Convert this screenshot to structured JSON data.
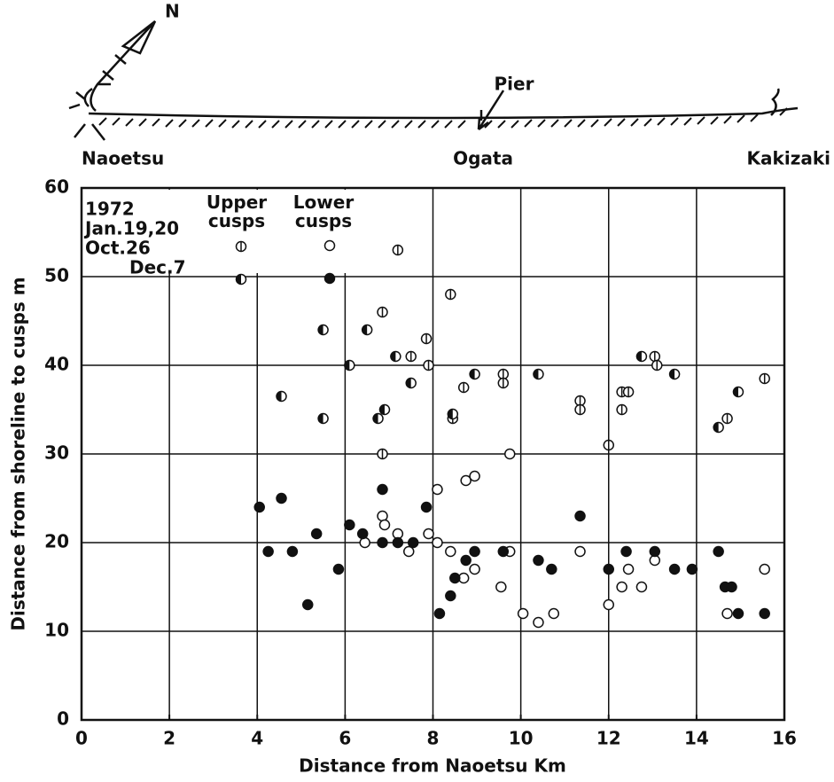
{
  "map": {
    "north": "N",
    "pier": "Pier",
    "places": [
      "Naoetsu",
      "Ogata",
      "Kakizaki"
    ]
  },
  "chart_data": {
    "type": "scatter",
    "xlabel": "Distance from Naoetsu  Km",
    "ylabel": "Distance from shoreline to cusps  m",
    "xlim": [
      0,
      16
    ],
    "ylim": [
      0,
      60
    ],
    "xticks": [
      0,
      2,
      4,
      6,
      8,
      10,
      12,
      14,
      16
    ],
    "yticks": [
      0,
      10,
      20,
      30,
      40,
      50,
      60
    ],
    "grid": true,
    "legend": {
      "title": "1972",
      "dates": [
        "Jan.19,20",
        "Oct.26",
        "Dec.7"
      ],
      "columns": [
        "Upper cusps",
        "Lower cusps"
      ]
    },
    "series": [
      {
        "marker": "barred",
        "color": "#111",
        "x": [
          6.85,
          6.85,
          7.2,
          7.5,
          7.85,
          7.9,
          8.4,
          8.45,
          8.7,
          9.6,
          9.6,
          11.35,
          11.35,
          12,
          12.3,
          12.3,
          12.45,
          13.05,
          13.1,
          14.7,
          15.55
        ],
        "y": [
          46,
          30,
          53,
          41,
          43,
          40,
          48,
          34,
          37.5,
          39,
          38,
          36,
          35,
          31,
          35,
          37,
          37,
          41,
          40,
          34,
          38.5
        ]
      },
      {
        "marker": "half",
        "color": "#111",
        "x": [
          4.55,
          5.5,
          5.5,
          6.1,
          6.5,
          6.75,
          6.9,
          7.15,
          7.5,
          8.45,
          8.95,
          10.4,
          12.75,
          13.5,
          14.5,
          14.95
        ],
        "y": [
          36.5,
          44,
          34,
          40,
          44,
          34,
          35,
          41,
          38,
          34.5,
          39,
          39,
          41,
          39,
          33,
          37
        ]
      },
      {
        "marker": "open",
        "color": "#111",
        "x": [
          6.45,
          6.85,
          6.9,
          7.2,
          7.45,
          7.9,
          8.1,
          8.1,
          8.4,
          8.7,
          8.75,
          8.95,
          8.95,
          9.55,
          9.75,
          9.75,
          10.05,
          10.4,
          10.75,
          11.35,
          12,
          12.3,
          12.45,
          12.75,
          13.05,
          14.7,
          15.55
        ],
        "y": [
          20,
          23,
          22,
          21,
          19,
          21,
          26,
          20,
          19,
          16,
          27,
          17,
          27.5,
          15,
          30,
          19,
          12,
          11,
          12,
          19,
          13,
          15,
          17,
          15,
          18,
          12,
          17
        ]
      },
      {
        "marker": "filled",
        "color": "#111",
        "x": [
          4.05,
          4.25,
          4.55,
          4.8,
          5.15,
          5.35,
          5.85,
          6.1,
          6.4,
          6.85,
          6.85,
          7.2,
          7.55,
          7.85,
          8.15,
          8.4,
          8.5,
          8.75,
          8.95,
          9.6,
          10.4,
          10.7,
          11.35,
          12,
          12.4,
          13.05,
          13.5,
          13.9,
          14.5,
          14.65,
          14.8,
          14.95,
          15.55
        ],
        "y": [
          24,
          19,
          25,
          19,
          13,
          21,
          17,
          22,
          21,
          26,
          20,
          20,
          20,
          24,
          12,
          14,
          16,
          18,
          19,
          19,
          18,
          17,
          23,
          17,
          19,
          19,
          17,
          17,
          19,
          15,
          15,
          12,
          12
        ]
      }
    ]
  }
}
